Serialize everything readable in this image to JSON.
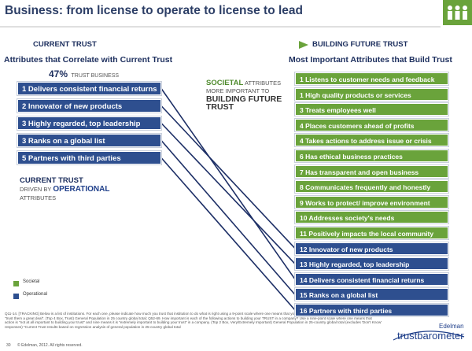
{
  "title": "Business: from license to operate to license to lead",
  "arrow": {
    "start": "CURRENT TRUST",
    "end": "BUILDING FUTURE TRUST"
  },
  "left": {
    "heading": "Attributes that Correlate with Current Trust",
    "stat": {
      "value": "47%",
      "label": "TRUST BUSINESS"
    },
    "color": "#2e4f8f",
    "items": [
      "1 Delivers consistent financial returns",
      "2 Innovator of new products",
      "3 Highly regarded, top leadership",
      "3 Ranks on a global list",
      "5 Partners with third parties"
    ],
    "caption": [
      "CURRENT TRUST",
      "DRIVEN BY",
      "OPERATIONAL",
      "ATTRIBUTES"
    ]
  },
  "center_caption": [
    "SOCIETAL",
    "ATTRIBUTES",
    "MORE IMPORTANT TO",
    "BUILDING FUTURE",
    "TRUST"
  ],
  "right": {
    "heading": "Most Important Attributes that Build Trust",
    "items": [
      {
        "text": "1 Listens to customer needs and feedback",
        "color": "#6aa33b"
      },
      {
        "text": "1 High quality products or services",
        "color": "#6aa33b"
      },
      {
        "text": "3 Treats employees well",
        "color": "#6aa33b"
      },
      {
        "text": "4 Places customers ahead of profits",
        "color": "#6aa33b"
      },
      {
        "text": "4 Takes actions to address issue or crisis",
        "color": "#6aa33b"
      },
      {
        "text": "6 Has ethical business practices",
        "color": "#6aa33b"
      },
      {
        "text": "7 Has transparent and open business",
        "color": "#6aa33b"
      },
      {
        "text": "8 Communicates frequently and honestly",
        "color": "#6aa33b"
      },
      {
        "text": "9 Works to protect/ improve environment",
        "color": "#6aa33b"
      },
      {
        "text": "10 Addresses society's needs",
        "color": "#6aa33b"
      },
      {
        "text": "11 Positively impacts the local community",
        "color": "#6aa33b"
      },
      {
        "text": "12 Innovator of new products",
        "color": "#2e4f8f"
      },
      {
        "text": "13 Highly regarded, top leadership",
        "color": "#2e4f8f"
      },
      {
        "text": "14 Delivers consistent financial returns",
        "color": "#2e4f8f"
      },
      {
        "text": "15 Ranks on a global list",
        "color": "#2e4f8f"
      },
      {
        "text": "16 Partners with third parties",
        "color": "#2e4f8f"
      }
    ]
  },
  "legend": [
    "Societal",
    "Operational"
  ],
  "footnote": "Q11-14. [TRACKING] Below is a list of institutions. For each one, please indicate how much you trust that institution to do what is right using a 9-point scale where one means that you \"do not trust them at all\" and nine means that you \"trust them a great deal\". (Top 4 Box, Trust) General Population in 25 country global total; Q52-69. How important is each of the following actions to building your TRUST in a company? Use a nine-point scale where one means that action is \"not at all important to building your trust\" and nine means it is \"extremely important to building your trust\" in a company. (Top 2 Box, Very/Extremely Important) General Population in 25-country global total (excludes 'Don't Know' responses) *Current Trust results based on regression analysis of general population in 25-country global total",
  "footer": {
    "page": "30",
    "copyright": "© Edelman, 2012. All rights reserved."
  },
  "logo": {
    "brand": "Edelman",
    "product": "trustbarometer"
  }
}
